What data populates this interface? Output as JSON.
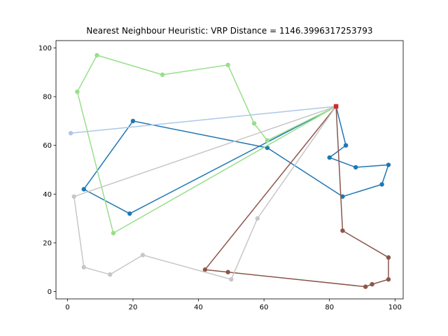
{
  "chart_data": {
    "type": "line",
    "title": "Nearest Neighbour Heuristic: VRP Distance = 1146.3996317253793",
    "xlabel": "",
    "ylabel": "",
    "xlim": [
      -3.5,
      102.5
    ],
    "ylim": [
      -3,
      103
    ],
    "xticks": [
      0,
      20,
      40,
      60,
      80,
      100
    ],
    "yticks": [
      0,
      20,
      40,
      60,
      80,
      100
    ],
    "grid": false,
    "depot": {
      "x": 82,
      "y": 76,
      "color": "#d62728"
    },
    "series": [
      {
        "color": "#1f77b4",
        "x": [
          82,
          85,
          80,
          88,
          98,
          96,
          84,
          61,
          20,
          5,
          19,
          82
        ],
        "y": [
          76,
          60,
          55,
          51,
          52,
          44,
          39,
          59,
          70,
          42,
          32,
          76
        ]
      },
      {
        "color": "#aec7e8",
        "x": [
          82,
          1,
          82
        ],
        "y": [
          76,
          65,
          76
        ]
      },
      {
        "color": "#98df8a",
        "x": [
          82,
          61,
          57,
          49,
          29,
          9,
          3,
          14,
          82
        ],
        "y": [
          76,
          62,
          69,
          93,
          89,
          97,
          82,
          24,
          76
        ]
      },
      {
        "color": "#8c564b",
        "x": [
          82,
          84,
          98,
          98,
          93,
          91,
          49,
          42,
          82
        ],
        "y": [
          76,
          25,
          14,
          5,
          3,
          2,
          8,
          9,
          76
        ]
      },
      {
        "color": "#c7c7c7",
        "x": [
          82,
          58,
          50,
          23,
          13,
          5,
          2,
          82
        ],
        "y": [
          76,
          30,
          5,
          15,
          7,
          10,
          39,
          76
        ]
      }
    ]
  }
}
